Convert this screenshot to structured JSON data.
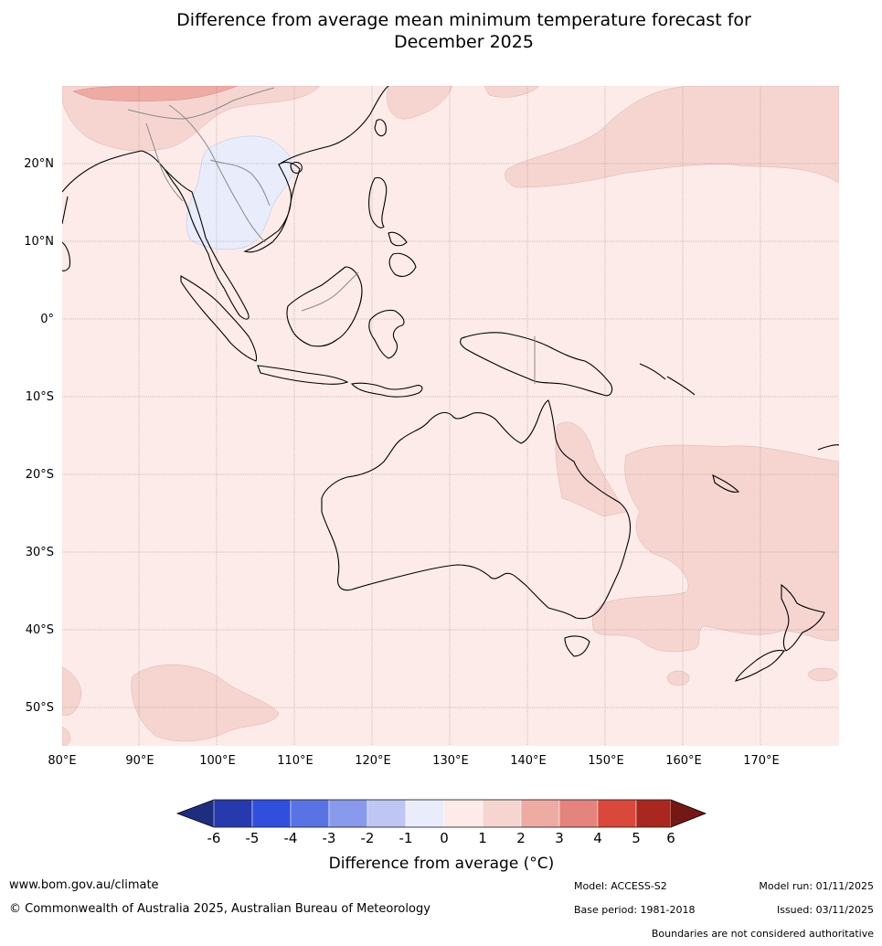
{
  "title_line1": "Difference from average mean minimum temperature forecast for",
  "title_line2": "December 2025",
  "map": {
    "lat_labels": [
      "20°N",
      "10°N",
      "0°",
      "10°S",
      "20°S",
      "30°S",
      "40°S",
      "50°S"
    ],
    "lon_labels": [
      "80°E",
      "90°E",
      "100°E",
      "110°E",
      "120°E",
      "130°E",
      "140°E",
      "150°E",
      "160°E",
      "170°E"
    ],
    "background_color": "#fcebe8",
    "anomaly_0_1_color": "#fcebe8",
    "anomaly_1_2_color": "#f6d5d1",
    "anomaly_2_3_color": "#eeaba4",
    "anomaly_neg1_0_color": "#e9ecfb",
    "coast_color": "#000000",
    "border_color": "#8a8a8a"
  },
  "colorbar": {
    "tick_labels": [
      "-6",
      "-5",
      "-4",
      "-3",
      "-2",
      "-1",
      "0",
      "1",
      "2",
      "3",
      "4",
      "5",
      "6"
    ],
    "colors": [
      "#1f2d7e",
      "#2639ad",
      "#2f4fdc",
      "#5a73e4",
      "#8999eb",
      "#bec6f4",
      "#e9ecfb",
      "#fcebe8",
      "#f6d5d1",
      "#eeaba4",
      "#e5847c",
      "#d9483a",
      "#a8281f",
      "#741816"
    ],
    "label": "Difference from average (°C)"
  },
  "footer": {
    "website": "www.bom.gov.au/climate",
    "copyright": "© Commonwealth of Australia 2025, Australian Bureau of Meteorology",
    "model": "Model: ACCESS-S2",
    "model_run": "Model run: 01/11/2025",
    "base_period": "Base period: 1981-2018",
    "issued": "Issued: 03/11/2025",
    "disclaimer": "Boundaries are not considered authoritative"
  }
}
